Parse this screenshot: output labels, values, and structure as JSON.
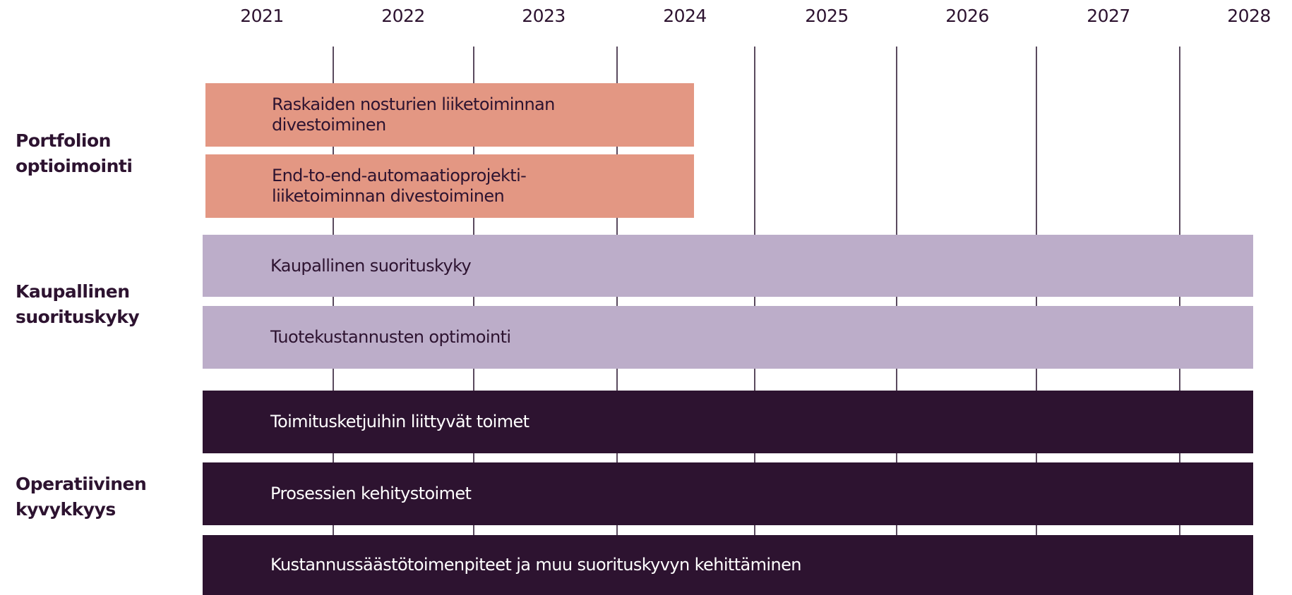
{
  "years": [
    "2021",
    "2022",
    "2023",
    "2024",
    "2025",
    "2026",
    "2027",
    "2028"
  ],
  "groups": [
    {
      "label": "Portfolion optioimointi",
      "items": [
        {
          "label": "Raskaiden nosturien liiketoiminnan divestoiminen"
        },
        {
          "label": "End-to-end-automaatioprojekti-liiketoiminnan divestoiminen"
        }
      ]
    },
    {
      "label": "Kaupallinen suorituskyky",
      "items": [
        {
          "label": "Kaupallinen suorituskyky"
        },
        {
          "label": "Tuotekustannusten optimointi"
        }
      ]
    },
    {
      "label": "Operatiivinen kyvykkyys",
      "items": [
        {
          "label": "Toimitusketjuihin liittyvät toimet"
        },
        {
          "label": "Prosessien kehitystoimet"
        },
        {
          "label": "Kustannussäästötoimenpiteet ja muu suorituskyvyn kehittäminen"
        }
      ]
    }
  ]
}
